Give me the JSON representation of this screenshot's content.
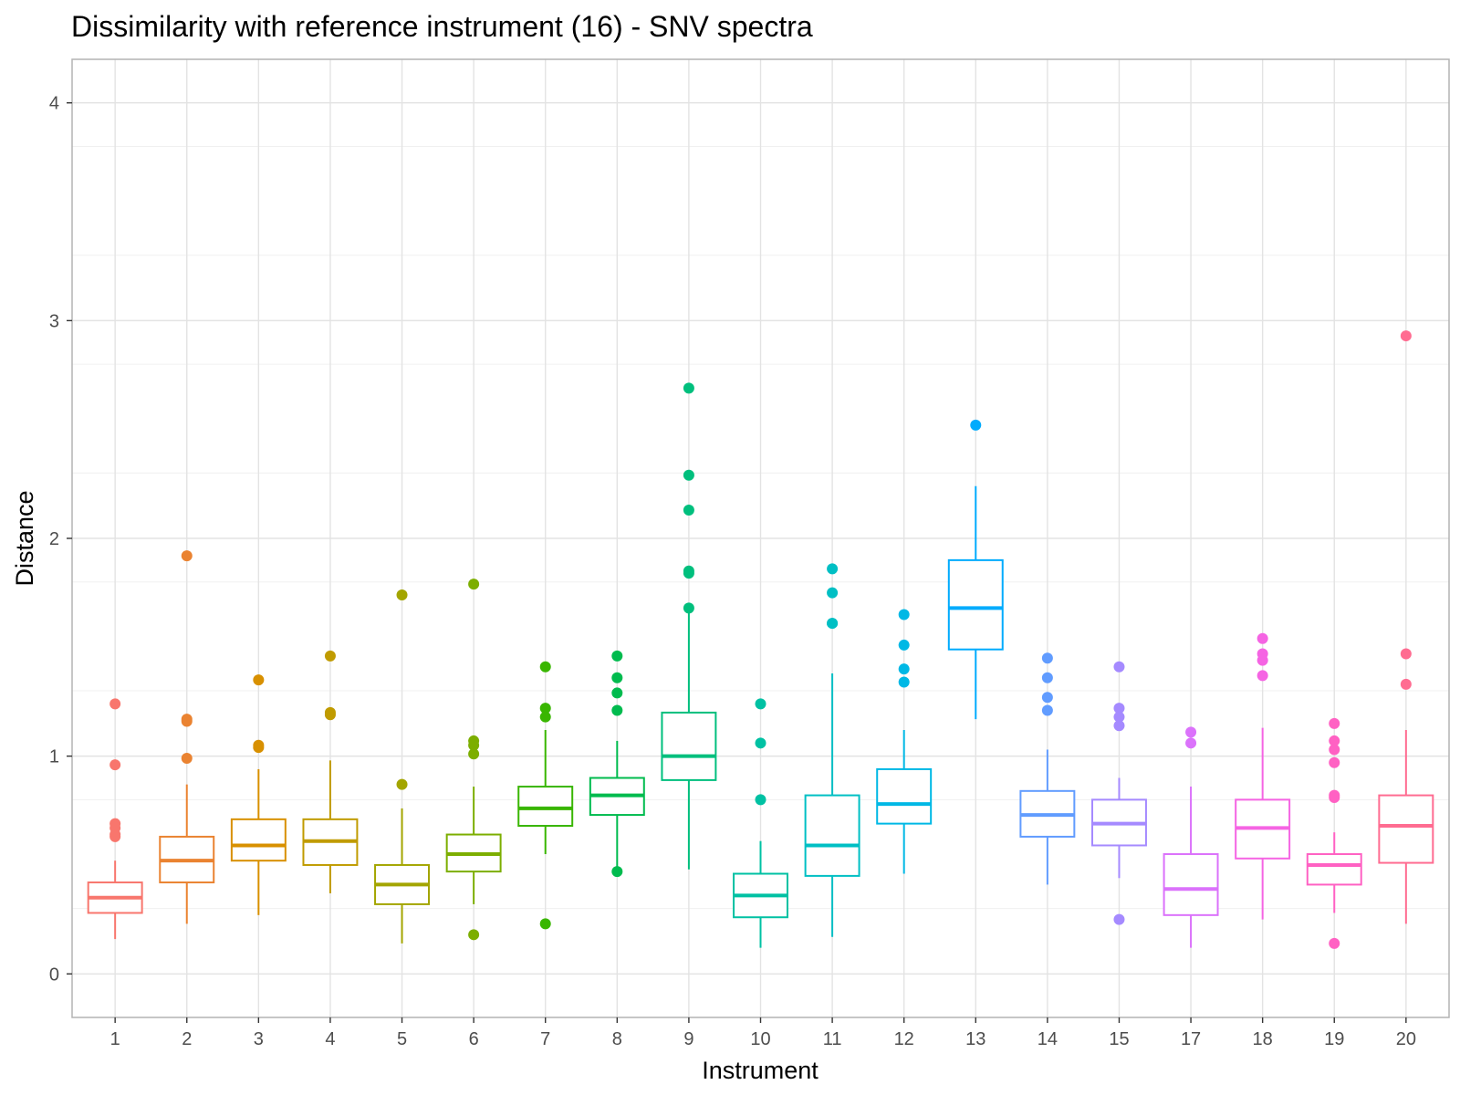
{
  "chart_data": {
    "type": "boxplot",
    "title": "Dissimilarity with reference instrument (16) - SNV spectra",
    "xlabel": "Instrument",
    "ylabel": "Distance",
    "ylim": [
      -0.2,
      4.2
    ],
    "yticks": [
      0,
      1,
      2,
      3,
      4
    ],
    "grid": true,
    "legend": "none",
    "categories": [
      "1",
      "2",
      "3",
      "4",
      "5",
      "6",
      "7",
      "8",
      "9",
      "10",
      "11",
      "12",
      "13",
      "14",
      "15",
      "17",
      "18",
      "19",
      "20"
    ],
    "boxes": [
      {
        "q1": 0.28,
        "median": 0.35,
        "q3": 0.42,
        "whisker_low": 0.16,
        "whisker_high": 0.52,
        "outliers": [
          1.24,
          0.96,
          0.69,
          0.67,
          0.64,
          0.63
        ],
        "color": "#F8766D"
      },
      {
        "q1": 0.42,
        "median": 0.52,
        "q3": 0.63,
        "whisker_low": 0.23,
        "whisker_high": 0.87,
        "outliers": [
          1.92,
          1.17,
          1.16,
          0.99
        ],
        "color": "#EA8331"
      },
      {
        "q1": 0.52,
        "median": 0.59,
        "q3": 0.71,
        "whisker_low": 0.27,
        "whisker_high": 0.94,
        "outliers": [
          1.35,
          1.05,
          1.04
        ],
        "color": "#D89000"
      },
      {
        "q1": 0.5,
        "median": 0.61,
        "q3": 0.71,
        "whisker_low": 0.37,
        "whisker_high": 0.98,
        "outliers": [
          1.46,
          1.2,
          1.19
        ],
        "color": "#C09B00"
      },
      {
        "q1": 0.32,
        "median": 0.41,
        "q3": 0.5,
        "whisker_low": 0.14,
        "whisker_high": 0.76,
        "outliers": [
          1.74,
          0.87
        ],
        "color": "#A3A500"
      },
      {
        "q1": 0.47,
        "median": 0.55,
        "q3": 0.64,
        "whisker_low": 0.32,
        "whisker_high": 0.86,
        "outliers": [
          1.79,
          1.07,
          1.05,
          1.01,
          0.18
        ],
        "color": "#7CAE00"
      },
      {
        "q1": 0.68,
        "median": 0.76,
        "q3": 0.86,
        "whisker_low": 0.55,
        "whisker_high": 1.12,
        "outliers": [
          1.41,
          1.22,
          1.18,
          0.23
        ],
        "color": "#39B600"
      },
      {
        "q1": 0.73,
        "median": 0.82,
        "q3": 0.9,
        "whisker_low": 0.47,
        "whisker_high": 1.07,
        "outliers": [
          1.46,
          1.36,
          1.29,
          1.21,
          0.47
        ],
        "color": "#00BB4E"
      },
      {
        "q1": 0.89,
        "median": 1.0,
        "q3": 1.2,
        "whisker_low": 0.48,
        "whisker_high": 1.68,
        "outliers": [
          2.69,
          2.29,
          2.13,
          1.85,
          1.84,
          1.68
        ],
        "color": "#00BF7D"
      },
      {
        "q1": 0.26,
        "median": 0.36,
        "q3": 0.46,
        "whisker_low": 0.12,
        "whisker_high": 0.61,
        "outliers": [
          1.24,
          1.06,
          0.8
        ],
        "color": "#00C1A3"
      },
      {
        "q1": 0.45,
        "median": 0.59,
        "q3": 0.82,
        "whisker_low": 0.17,
        "whisker_high": 1.38,
        "outliers": [
          1.86,
          1.75,
          1.61,
          1.61
        ],
        "color": "#00BFC4"
      },
      {
        "q1": 0.69,
        "median": 0.78,
        "q3": 0.94,
        "whisker_low": 0.46,
        "whisker_high": 1.12,
        "outliers": [
          1.65,
          1.51,
          1.4,
          1.34
        ],
        "color": "#00B8E5"
      },
      {
        "q1": 1.49,
        "median": 1.68,
        "q3": 1.9,
        "whisker_low": 1.17,
        "whisker_high": 2.24,
        "outliers": [
          2.52
        ],
        "color": "#00ABFD"
      },
      {
        "q1": 0.63,
        "median": 0.73,
        "q3": 0.84,
        "whisker_low": 0.41,
        "whisker_high": 1.03,
        "outliers": [
          1.45,
          1.36,
          1.27,
          1.21
        ],
        "color": "#619CFF"
      },
      {
        "q1": 0.59,
        "median": 0.69,
        "q3": 0.8,
        "whisker_low": 0.44,
        "whisker_high": 0.9,
        "outliers": [
          1.41,
          1.22,
          1.18,
          1.14,
          0.25
        ],
        "color": "#A58AFF"
      },
      {
        "q1": 0.27,
        "median": 0.39,
        "q3": 0.55,
        "whisker_low": 0.12,
        "whisker_high": 0.86,
        "outliers": [
          1.11,
          1.06
        ],
        "color": "#DB72FB"
      },
      {
        "q1": 0.53,
        "median": 0.67,
        "q3": 0.8,
        "whisker_low": 0.25,
        "whisker_high": 1.13,
        "outliers": [
          1.54,
          1.47,
          1.44,
          1.37
        ],
        "color": "#F564E3"
      },
      {
        "q1": 0.41,
        "median": 0.5,
        "q3": 0.55,
        "whisker_low": 0.28,
        "whisker_high": 0.65,
        "outliers": [
          1.15,
          1.07,
          1.03,
          0.97,
          0.82,
          0.81,
          0.14
        ],
        "color": "#FF61C3"
      },
      {
        "q1": 0.51,
        "median": 0.68,
        "q3": 0.82,
        "whisker_low": 0.23,
        "whisker_high": 1.12,
        "outliers": [
          2.93,
          1.47,
          1.33
        ],
        "color": "#FF6C91"
      }
    ]
  }
}
